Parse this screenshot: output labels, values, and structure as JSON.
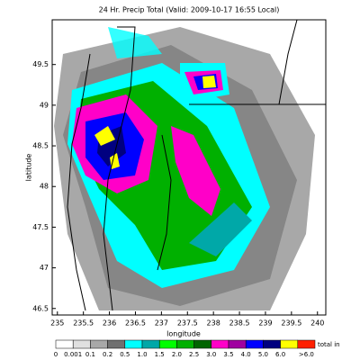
{
  "title": "24 Hr. Precip Total (Valid: 2009-10-17 16:55 Local)",
  "x_label": "longitude",
  "y_label": "latitude",
  "xlim": [
    234.9,
    240.16
  ],
  "ylim": [
    46.42,
    50.05
  ],
  "xticks": [
    235,
    235.5,
    236,
    236.5,
    237,
    237.5,
    238,
    238.5,
    239,
    239.5,
    240
  ],
  "yticks": [
    46.5,
    47,
    47.5,
    48,
    48.5,
    49,
    49.5
  ],
  "legend": {
    "unit": "total in",
    "items": [
      {
        "label": "0",
        "color": "#ffffff"
      },
      {
        "label": "0.001",
        "color": "#e0e0e0"
      },
      {
        "label": "0.1",
        "color": "#a8a8a8"
      },
      {
        "label": "0.2",
        "color": "#707070"
      },
      {
        "label": "0.5",
        "color": "#00ffff"
      },
      {
        "label": "1.0",
        "color": "#00a8a8"
      },
      {
        "label": "1.5",
        "color": "#00ff00"
      },
      {
        "label": "2.0",
        "color": "#00b000"
      },
      {
        "label": "2.5",
        "color": "#006400"
      },
      {
        "label": "3.0",
        "color": "#ff00c8"
      },
      {
        "label": "3.5",
        "color": "#a000a0"
      },
      {
        "label": "4.0",
        "color": "#0000ff"
      },
      {
        "label": "5.0",
        "color": "#000080"
      },
      {
        "label": "6.0",
        "color": "#ffff00"
      },
      {
        "label": ">6.0",
        "color": "#ff2000"
      }
    ]
  }
}
